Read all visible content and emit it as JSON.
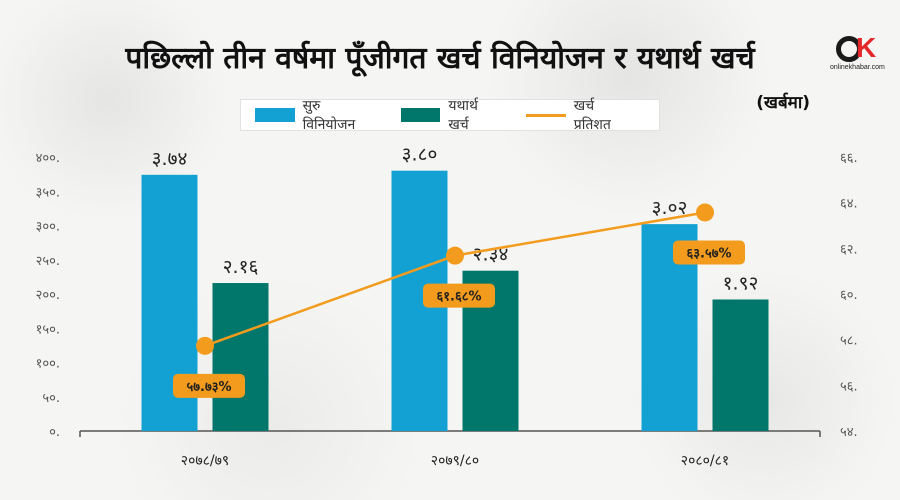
{
  "header": {
    "title": "पछिल्लो तीन वर्षमा पूँजीगत खर्च विनियोजन र यथार्थ खर्च",
    "subtitle": "(खर्बमा)"
  },
  "logo": {
    "text": "onlinekhabar",
    "mark_letters": "OK"
  },
  "legend": [
    {
      "label": "सुरु विनियोजन",
      "color": "#13a1d4",
      "kind": "bar"
    },
    {
      "label": "यथार्थ खर्च",
      "color": "#00776a",
      "kind": "bar"
    },
    {
      "label": "खर्च प्रतिशत",
      "color": "#f39b1c",
      "kind": "line"
    }
  ],
  "chart_data": {
    "type": "bar",
    "categories": [
      "२०७८/७९",
      "२०७९/८०",
      "२०८०/८१"
    ],
    "series": [
      {
        "name": "सुरु विनियोजन",
        "values": [
          374,
          380,
          302
        ],
        "labels": [
          "३.७४",
          "३.८०",
          "३.०२"
        ],
        "color": "#13a1d4"
      },
      {
        "name": "यथार्थ खर्च",
        "values": [
          216,
          234,
          192
        ],
        "labels": [
          "२.१६",
          "२.३४",
          "१.९२"
        ],
        "color": "#00776a"
      }
    ],
    "line_series": {
      "name": "खर्च प्रतिशत",
      "values": [
        57.73,
        61.68,
        63.57
      ],
      "labels": [
        "५७.७३%",
        "६१.६८%",
        "६३.५७%"
      ],
      "color": "#f39b1c",
      "axis": "right"
    },
    "y_left": {
      "ylim": [
        0,
        400
      ],
      "ticks": [
        "०.",
        "५०.",
        "१००.",
        "१५०.",
        "२००.",
        "२५०.",
        "३००.",
        "३५०.",
        "४००."
      ]
    },
    "y_right": {
      "ylim": [
        54,
        66
      ],
      "ticks": [
        "५४.",
        "५६.",
        "५८.",
        "६०.",
        "६२.",
        "६४.",
        "६६."
      ]
    },
    "grid": false,
    "legend_position": "top"
  }
}
